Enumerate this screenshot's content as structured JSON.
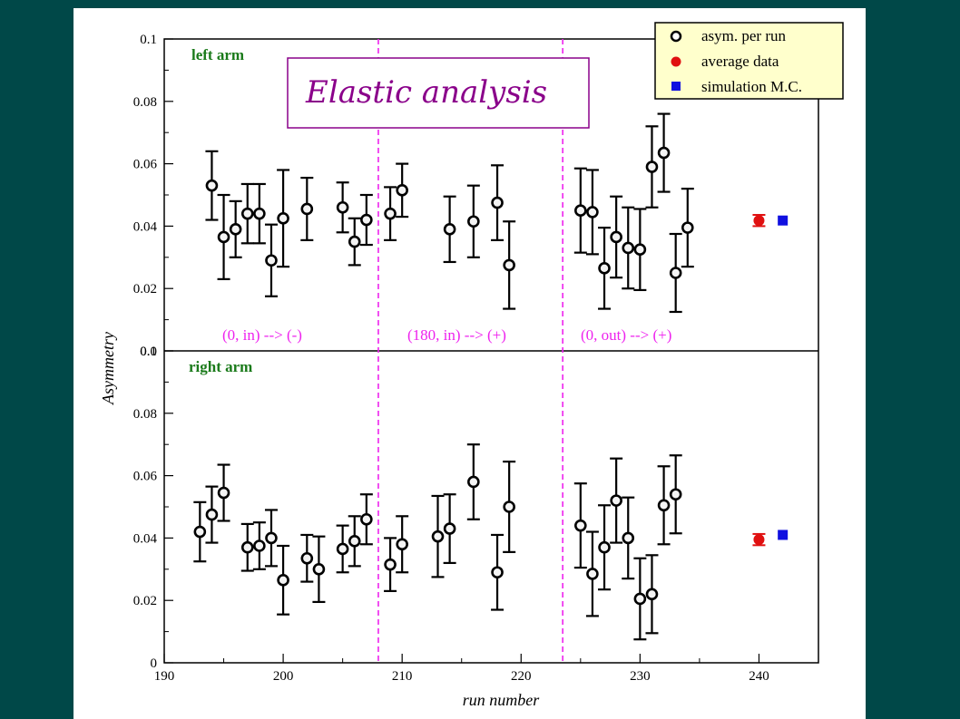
{
  "chart_data": {
    "type": "scatter",
    "title": "Elastic analysis",
    "xlabel": "run number",
    "ylabel": "Asymmetry",
    "xlim": [
      190,
      245
    ],
    "x_ticks": [
      "190",
      "200",
      "210",
      "220",
      "230",
      "240"
    ],
    "legend": {
      "placement": "top-right",
      "entries": [
        "asym. per run",
        "average data",
        "simulation M.C."
      ]
    },
    "config_boundaries": [
      208,
      223.5
    ],
    "panels": [
      {
        "label": "left arm",
        "ylim": [
          0,
          0.1
        ],
        "y_ticks": [
          "0.0",
          "0.02",
          "0.04",
          "0.06",
          "0.08",
          "0.1"
        ],
        "regions": [
          "(0, in) --> (-)",
          "(180, in) --> (+)",
          "(0, out) --> (+)"
        ],
        "series": [
          {
            "name": "asym. per run",
            "points": [
              {
                "x": 194,
                "y": 0.053,
                "err": 0.011
              },
              {
                "x": 195,
                "y": 0.0365,
                "err": 0.0135
              },
              {
                "x": 196,
                "y": 0.039,
                "err": 0.009
              },
              {
                "x": 197,
                "y": 0.044,
                "err": 0.0095
              },
              {
                "x": 198,
                "y": 0.044,
                "err": 0.0095
              },
              {
                "x": 199,
                "y": 0.029,
                "err": 0.0115
              },
              {
                "x": 200,
                "y": 0.0425,
                "err": 0.0155
              },
              {
                "x": 202,
                "y": 0.0455,
                "err": 0.01
              },
              {
                "x": 205,
                "y": 0.046,
                "err": 0.008
              },
              {
                "x": 206,
                "y": 0.035,
                "err": 0.0075
              },
              {
                "x": 207,
                "y": 0.042,
                "err": 0.008
              },
              {
                "x": 209,
                "y": 0.044,
                "err": 0.0085
              },
              {
                "x": 210,
                "y": 0.0515,
                "err": 0.0085
              },
              {
                "x": 214,
                "y": 0.039,
                "err": 0.0105
              },
              {
                "x": 216,
                "y": 0.0415,
                "err": 0.0115
              },
              {
                "x": 218,
                "y": 0.0475,
                "err": 0.012
              },
              {
                "x": 219,
                "y": 0.0275,
                "err": 0.014
              },
              {
                "x": 225,
                "y": 0.045,
                "err": 0.0135
              },
              {
                "x": 226,
                "y": 0.0445,
                "err": 0.0135
              },
              {
                "x": 227,
                "y": 0.0265,
                "err": 0.013
              },
              {
                "x": 228,
                "y": 0.0365,
                "err": 0.013
              },
              {
                "x": 229,
                "y": 0.033,
                "err": 0.013
              },
              {
                "x": 230,
                "y": 0.0325,
                "err": 0.013
              },
              {
                "x": 231,
                "y": 0.059,
                "err": 0.013
              },
              {
                "x": 232,
                "y": 0.0635,
                "err": 0.0125
              },
              {
                "x": 233,
                "y": 0.025,
                "err": 0.0125
              },
              {
                "x": 234,
                "y": 0.0395,
                "err": 0.0125
              }
            ]
          },
          {
            "name": "average data",
            "points": [
              {
                "x": 240,
                "y": 0.0418,
                "err": 0.0018
              }
            ]
          },
          {
            "name": "simulation M.C.",
            "points": [
              {
                "x": 242,
                "y": 0.0418,
                "err": 0
              }
            ]
          }
        ]
      },
      {
        "label": "right arm",
        "ylim": [
          0,
          0.1
        ],
        "y_ticks": [
          "0",
          "0.02",
          "0.04",
          "0.06",
          "0.08",
          "0.1"
        ],
        "series": [
          {
            "name": "asym. per run",
            "points": [
              {
                "x": 193,
                "y": 0.042,
                "err": 0.0095
              },
              {
                "x": 194,
                "y": 0.0475,
                "err": 0.009
              },
              {
                "x": 195,
                "y": 0.0545,
                "err": 0.009
              },
              {
                "x": 197,
                "y": 0.037,
                "err": 0.0075
              },
              {
                "x": 198,
                "y": 0.0375,
                "err": 0.0075
              },
              {
                "x": 199,
                "y": 0.04,
                "err": 0.009
              },
              {
                "x": 200,
                "y": 0.0265,
                "err": 0.011
              },
              {
                "x": 202,
                "y": 0.0335,
                "err": 0.0075
              },
              {
                "x": 203,
                "y": 0.03,
                "err": 0.0105
              },
              {
                "x": 205,
                "y": 0.0365,
                "err": 0.0075
              },
              {
                "x": 206,
                "y": 0.039,
                "err": 0.008
              },
              {
                "x": 207,
                "y": 0.046,
                "err": 0.008
              },
              {
                "x": 209,
                "y": 0.0315,
                "err": 0.0085
              },
              {
                "x": 210,
                "y": 0.038,
                "err": 0.009
              },
              {
                "x": 213,
                "y": 0.0405,
                "err": 0.013
              },
              {
                "x": 214,
                "y": 0.043,
                "err": 0.011
              },
              {
                "x": 216,
                "y": 0.058,
                "err": 0.012
              },
              {
                "x": 218,
                "y": 0.029,
                "err": 0.012
              },
              {
                "x": 219,
                "y": 0.05,
                "err": 0.0145
              },
              {
                "x": 225,
                "y": 0.044,
                "err": 0.0135
              },
              {
                "x": 226,
                "y": 0.0285,
                "err": 0.0135
              },
              {
                "x": 227,
                "y": 0.037,
                "err": 0.0135
              },
              {
                "x": 228,
                "y": 0.052,
                "err": 0.0135
              },
              {
                "x": 229,
                "y": 0.04,
                "err": 0.013
              },
              {
                "x": 230,
                "y": 0.0205,
                "err": 0.013
              },
              {
                "x": 231,
                "y": 0.022,
                "err": 0.0125
              },
              {
                "x": 232,
                "y": 0.0505,
                "err": 0.0125
              },
              {
                "x": 233,
                "y": 0.054,
                "err": 0.0125
              }
            ]
          },
          {
            "name": "average data",
            "points": [
              {
                "x": 240,
                "y": 0.0395,
                "err": 0.0018
              }
            ]
          },
          {
            "name": "simulation M.C.",
            "points": [
              {
                "x": 242,
                "y": 0.041,
                "err": 0
              }
            ]
          }
        ]
      }
    ]
  },
  "colors": {
    "background": "#004848",
    "run_marker": "#000000",
    "average": "#e01010",
    "simulation": "#1010e0",
    "boundary": "#ee22ee",
    "arm_label": "#1a7a1a",
    "title": "#8a008a",
    "legend_bg": "#ffffcc"
  }
}
